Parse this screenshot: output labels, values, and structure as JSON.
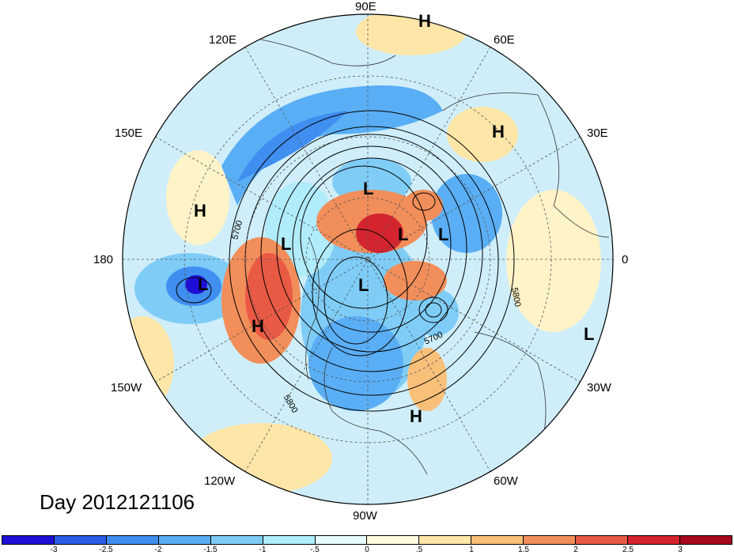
{
  "longitude_labels": {
    "lon_90e": "90E",
    "lon_60e": "60E",
    "lon_30e": "30E",
    "lon_0": "0",
    "lon_30w": "30W",
    "lon_60w": "60W",
    "lon_90w": "90W",
    "lon_120w": "120W",
    "lon_150w": "150W",
    "lon_180": "180",
    "lon_150e": "150E",
    "lon_120e": "120E"
  },
  "pressure_systems": [
    {
      "id": "h-top",
      "label": "H"
    },
    {
      "id": "h-europe",
      "label": "H"
    },
    {
      "id": "l-siberia",
      "label": "L"
    },
    {
      "id": "l-kara",
      "label": "L"
    },
    {
      "id": "l-east",
      "label": "L"
    },
    {
      "id": "l-bering",
      "label": "L"
    },
    {
      "id": "h-west",
      "label": "H"
    },
    {
      "id": "l-pacific",
      "label": "L"
    },
    {
      "id": "h-gulf",
      "label": "H"
    },
    {
      "id": "l-canada",
      "label": "L"
    },
    {
      "id": "h-atlantic",
      "label": "H"
    },
    {
      "id": "l-atlantic",
      "label": "L"
    }
  ],
  "contour_labels": {
    "c5700_left": "5700",
    "c5800_bottom": "5800",
    "c5700_right": "5700",
    "c5800_right": "5800"
  },
  "day_label": "Day 2012121106",
  "colorbar": {
    "colors": [
      "#1e0fd6",
      "#2a5ce8",
      "#3f8ef0",
      "#5aaef5",
      "#7fcdf7",
      "#b0ecfb",
      "#e6fcff",
      "#fffbe0",
      "#fde6a8",
      "#f9c07a",
      "#f28e5a",
      "#e95a45",
      "#d4242e",
      "#a8081e"
    ],
    "ticks": [
      "-3",
      "-2.5",
      "-2",
      "-1.5",
      "-1",
      "-.5",
      "0",
      ".5",
      "1",
      "1.5",
      "2",
      "2.5",
      "3"
    ]
  }
}
